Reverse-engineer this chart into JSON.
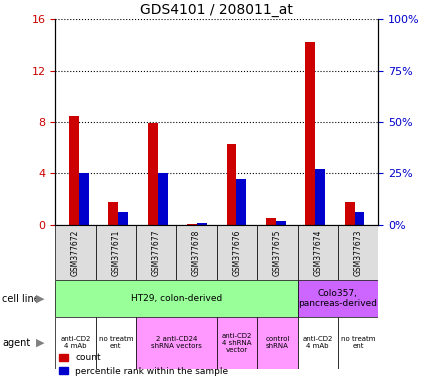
{
  "title": "GDS4101 / 208011_at",
  "samples": [
    "GSM377672",
    "GSM377671",
    "GSM377677",
    "GSM377678",
    "GSM377676",
    "GSM377675",
    "GSM377674",
    "GSM377673"
  ],
  "count_values": [
    8.5,
    1.8,
    7.9,
    0.05,
    6.3,
    0.5,
    14.2,
    1.8
  ],
  "percentile_values": [
    25,
    6,
    25,
    1,
    22,
    2,
    27,
    6
  ],
  "ylim_left": [
    0,
    16
  ],
  "ylim_right": [
    0,
    100
  ],
  "yticks_left": [
    0,
    4,
    8,
    12,
    16
  ],
  "ytick_labels_left": [
    "0",
    "4",
    "8",
    "12",
    "16"
  ],
  "yticks_right": [
    0,
    25,
    50,
    75,
    100
  ],
  "ytick_labels_right": [
    "0%",
    "25%",
    "50%",
    "75%",
    "100%"
  ],
  "bar_color_count": "#cc0000",
  "bar_color_pct": "#0000cc",
  "bar_width": 0.25,
  "cell_line_groups": [
    {
      "label": "HT29, colon-derived",
      "start": 0,
      "end": 5,
      "color": "#99ff99"
    },
    {
      "label": "Colo357,\npancreas-derived",
      "start": 6,
      "end": 7,
      "color": "#cc66ff"
    }
  ],
  "agent_groups": [
    {
      "label": "anti-CD2\n4 mAb",
      "start": 0,
      "end": 0,
      "color": "#ffffff"
    },
    {
      "label": "no treatm\nent",
      "start": 1,
      "end": 1,
      "color": "#ffffff"
    },
    {
      "label": "2 anti-CD24\nshRNA vectors",
      "start": 2,
      "end": 3,
      "color": "#ff99ff"
    },
    {
      "label": "anti-CD2\n4 shRNA\nvector",
      "start": 4,
      "end": 4,
      "color": "#ff99ff"
    },
    {
      "label": "control\nshRNA",
      "start": 5,
      "end": 5,
      "color": "#ff99ff"
    },
    {
      "label": "anti-CD2\n4 mAb",
      "start": 6,
      "end": 6,
      "color": "#ffffff"
    },
    {
      "label": "no treatm\nent",
      "start": 7,
      "end": 7,
      "color": "#ffffff"
    }
  ],
  "axis_label_color_left": "#cc0000",
  "axis_label_color_right": "#0000cc",
  "sample_bg_color": "#dddddd",
  "legend_count_label": "count",
  "legend_pct_label": "percentile rank within the sample",
  "cell_line_row_label": "cell line",
  "agent_row_label": "agent"
}
